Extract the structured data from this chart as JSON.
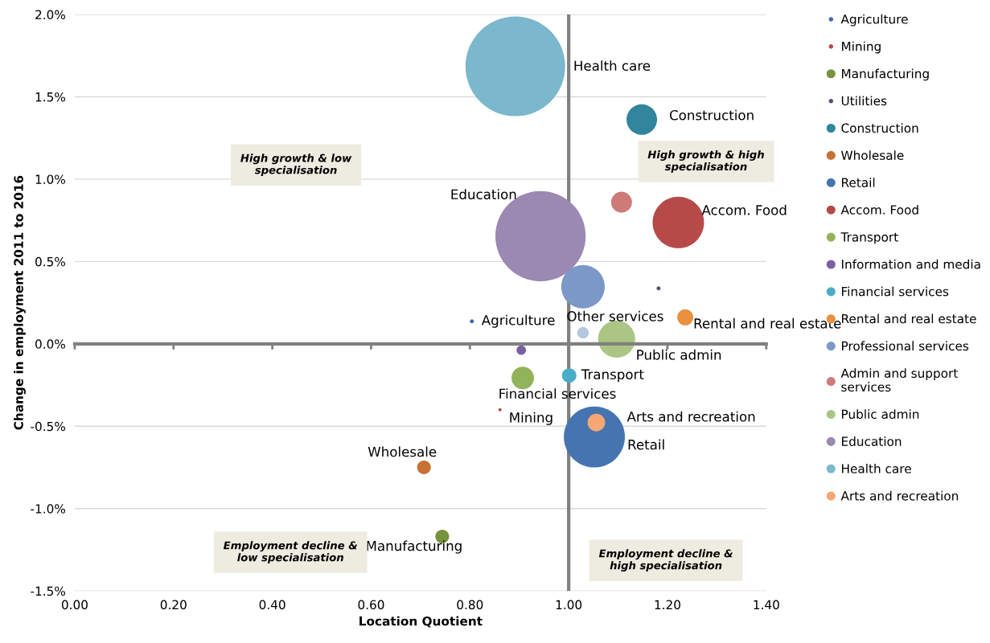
{
  "chart_data": {
    "type": "bubble",
    "xlabel": "Location Quotient",
    "ylabel": "Change in employment 2011 to 2016",
    "xlim": [
      0,
      1.4
    ],
    "ylim": [
      -1.5,
      2.0
    ],
    "xticks": [
      {
        "value": 0,
        "label": "0.00"
      },
      {
        "value": 0.2,
        "label": "0.20"
      },
      {
        "value": 0.4,
        "label": "0.40"
      },
      {
        "value": 0.6,
        "label": "0.60"
      },
      {
        "value": 0.8,
        "label": "0.80"
      },
      {
        "value": 1.0,
        "label": "1.00"
      },
      {
        "value": 1.2,
        "label": "1.20"
      },
      {
        "value": 1.4,
        "label": "1.40"
      }
    ],
    "yticks": [
      {
        "value": -1.5,
        "label": "-1.5%"
      },
      {
        "value": -1.0,
        "label": "-1.0%"
      },
      {
        "value": -0.5,
        "label": "-0.5%"
      },
      {
        "value": 0,
        "label": "0.0%"
      },
      {
        "value": 0.5,
        "label": "0.5%"
      },
      {
        "value": 1.0,
        "label": "1.0%"
      },
      {
        "value": 1.5,
        "label": "1.5%"
      },
      {
        "value": 2.0,
        "label": "2.0%"
      }
    ],
    "grid": "y",
    "legend": "right",
    "ref_lines": [
      {
        "axis": "x",
        "value": 1.0,
        "color": "#808080"
      }
    ],
    "series": [
      {
        "name": "Agriculture",
        "color": "#3f6aa8",
        "x": [
          0.804
        ],
        "values": [
          0.137
        ],
        "sizes": [
          0.0016
        ]
      },
      {
        "name": "Mining",
        "color": "#b94a48",
        "x": [
          0.861
        ],
        "values": [
          -0.4
        ],
        "sizes": [
          0.001
        ]
      },
      {
        "name": "Manufacturing",
        "color": "#76923c",
        "x": [
          0.744
        ],
        "values": [
          -1.17
        ],
        "sizes": [
          0.019
        ]
      },
      {
        "name": "Utilities",
        "color": "#604a7b",
        "x": [
          1.182
        ],
        "values": [
          0.337
        ],
        "sizes": [
          0.0016
        ]
      },
      {
        "name": "Construction",
        "color": "#31859c",
        "x": [
          1.148
        ],
        "values": [
          1.362
        ],
        "sizes": [
          0.094
        ]
      },
      {
        "name": "Wholesale",
        "color": "#c57234",
        "x": [
          0.707
        ],
        "values": [
          -0.75
        ],
        "sizes": [
          0.019
        ]
      },
      {
        "name": "Retail",
        "color": "#4674b0",
        "x": [
          1.052
        ],
        "values": [
          -0.565
        ],
        "sizes": [
          0.375
        ]
      },
      {
        "name": "Accom. Food",
        "color": "#b54a48",
        "x": [
          1.222
        ],
        "values": [
          0.737
        ],
        "sizes": [
          0.266
        ]
      },
      {
        "name": "Transport",
        "color": "#93b35a",
        "x": [
          0.907
        ],
        "values": [
          -0.207
        ],
        "sizes": [
          0.051
        ]
      },
      {
        "name": "Information and media",
        "color": "#7b5fa0",
        "x": [
          0.904
        ],
        "values": [
          -0.038
        ],
        "sizes": [
          0.009
        ]
      },
      {
        "name": "Financial services",
        "color": "#4bacc6",
        "x": [
          1.001
        ],
        "values": [
          -0.192
        ],
        "sizes": [
          0.021
        ]
      },
      {
        "name": "Rental and real estate",
        "color": "#e8913e",
        "x": [
          1.236
        ],
        "values": [
          0.161
        ],
        "sizes": [
          0.026
        ]
      },
      {
        "name": "Professional services",
        "color": "#7b98c6",
        "x": [
          1.029
        ],
        "values": [
          0.347
        ],
        "sizes": [
          0.19
        ]
      },
      {
        "name": "Admin and support\nservices",
        "color": "#cd7a79",
        "x": [
          1.107
        ],
        "values": [
          0.86
        ],
        "sizes": [
          0.044
        ]
      },
      {
        "name": "Public admin",
        "color": "#abc684",
        "x": [
          1.097
        ],
        "values": [
          0.029
        ],
        "sizes": [
          0.138
        ]
      },
      {
        "name": "Education",
        "color": "#9b88b3",
        "x": [
          0.943
        ],
        "values": [
          0.654
        ],
        "sizes": [
          0.82
        ]
      },
      {
        "name": "Health care",
        "color": "#7bb7cd",
        "x": [
          0.892
        ],
        "values": [
          1.685
        ],
        "sizes": [
          1
        ]
      },
      {
        "name": "Arts and recreation",
        "color": "#f5a774",
        "x": [
          1.056
        ],
        "values": [
          -0.478
        ],
        "sizes": [
          0.031
        ]
      },
      {
        "color": "#b4c6e0",
        "x": [
          1.029
        ],
        "values": [
          0.068
        ],
        "sizes": [
          0.013
        ]
      }
    ],
    "annotations": [
      "Health care",
      {
        "text": "Construction",
        "x": 1.148,
        "y": 1.362
      },
      "Education",
      {
        "text": "Accom. Food",
        "x": 1.222,
        "y": 0.737
      },
      {
        "text": "Agriculture",
        "x": 0.804,
        "y": 0.137
      },
      {
        "text": "Other services",
        "x": 1.029,
        "y": 0.068
      },
      {
        "text": "Rental and real estate",
        "x": 1.236,
        "y": 0.161
      },
      {
        "text": "Public admin",
        "x": 1.097,
        "y": 0.029
      },
      {
        "text": "Transport",
        "x": 1.001,
        "y": -0.192
      },
      {
        "text": "Financial services",
        "x": 0.907,
        "y": -0.207
      },
      {
        "text": "Mining",
        "x": 0.861,
        "y": -0.4
      },
      {
        "text": "Arts and recreation",
        "x": 1.056,
        "y": -0.478
      },
      {
        "text": "Retail",
        "x": 1.052,
        "y": -0.565
      },
      {
        "text": "Wholesale",
        "x": 0.707,
        "y": -0.75
      },
      {
        "text": "Manufacturing",
        "x": 0.744,
        "y": -1.17
      },
      "High growth & low\nspecialisation",
      "High growth & high\nspecialisation",
      "Employment decline &\nlow specialisation",
      "Employment decline &\nhigh specialisation"
    ]
  }
}
